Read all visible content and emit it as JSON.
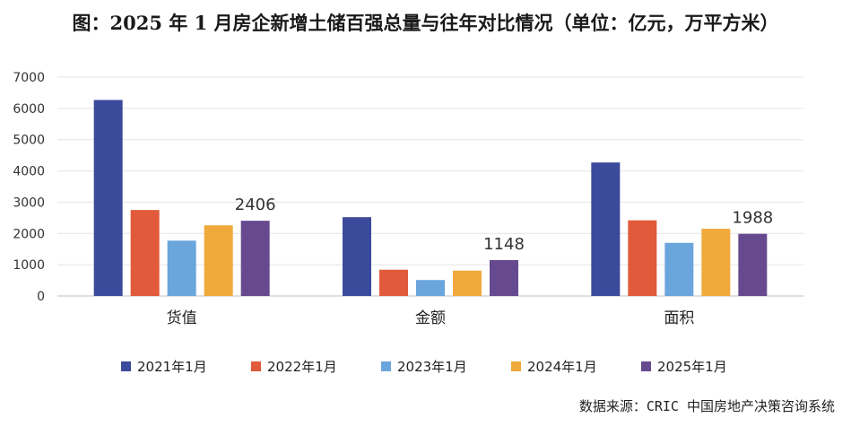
{
  "header": {
    "title": "图：2025 年 1 月房企新增土储百强总量与往年对比情况（单位：亿元，万平方米）"
  },
  "footer": {
    "source": "数据来源：CRIC 中国房地产决策咨询系统"
  },
  "chart_data": {
    "type": "bar",
    "title": "图：2025 年 1 月房企新增土储百强总量与往年对比情况（单位：亿元，万平方米）",
    "categories": [
      "货值",
      "金额",
      "面积"
    ],
    "series": [
      {
        "name": "2021年1月",
        "color": "#3b4a9b",
        "values": [
          6270,
          2520,
          4270
        ]
      },
      {
        "name": "2022年1月",
        "color": "#e05a3b",
        "values": [
          2750,
          840,
          2420
        ]
      },
      {
        "name": "2023年1月",
        "color": "#6aa5dc",
        "values": [
          1770,
          510,
          1700
        ]
      },
      {
        "name": "2024年1月",
        "color": "#f0a93b",
        "values": [
          2260,
          810,
          2150
        ]
      },
      {
        "name": "2025年1月",
        "color": "#67498f",
        "values": [
          2406,
          1148,
          1988
        ]
      }
    ],
    "data_labels": [
      {
        "series": "2025年1月",
        "category": "货值",
        "text": "2406"
      },
      {
        "series": "2025年1月",
        "category": "金额",
        "text": "1148"
      },
      {
        "series": "2025年1月",
        "category": "面积",
        "text": "1988"
      }
    ],
    "ylim": [
      0,
      7000
    ],
    "yticks": [
      0,
      1000,
      2000,
      3000,
      4000,
      5000,
      6000,
      7000
    ],
    "xlabel": "",
    "ylabel": "",
    "grid": true,
    "legend": "bottom"
  }
}
